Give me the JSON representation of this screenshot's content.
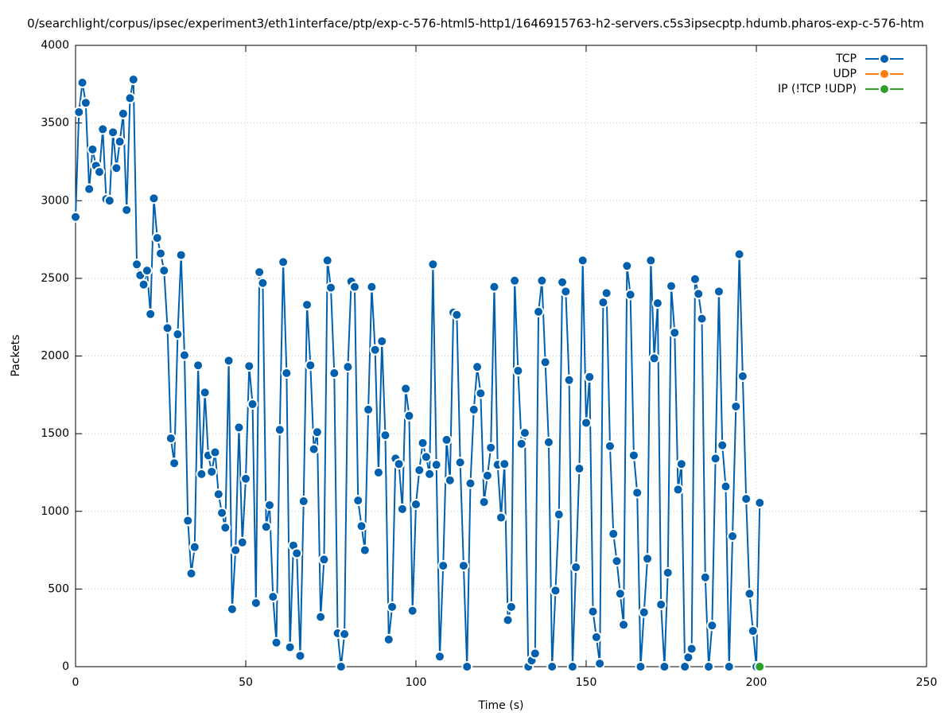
{
  "chart_data": {
    "type": "line",
    "title": "0/searchlight/corpus/ipsec/experiment3/eth1interface/ptp/exp-c-576-html5-http1/1646915763-h2-servers.c5s3ipsecptp.hdumb.pharos-exp-c-576-htm",
    "x_label": "Time (s)",
    "y_label": "Packets",
    "xlim": [
      0,
      250
    ],
    "xticks": [
      0,
      50,
      100,
      150,
      200,
      250
    ],
    "ylim": [
      0,
      4000
    ],
    "yticks": [
      0,
      500,
      1000,
      1500,
      2000,
      2500,
      3000,
      3500,
      4000
    ],
    "grid": true,
    "legend": "top-right",
    "series": [
      {
        "name": "TCP",
        "color": "#0060ad",
        "x": [
          0,
          1,
          2,
          3,
          4,
          5,
          6,
          7,
          8,
          9,
          10,
          11,
          12,
          13,
          14,
          15,
          16,
          17,
          18,
          19,
          20,
          21,
          22,
          23,
          24,
          25,
          26,
          27,
          28,
          29,
          30,
          31,
          32,
          33,
          34,
          35,
          36,
          37,
          38,
          39,
          40,
          41,
          42,
          43,
          44,
          45,
          46,
          47,
          48,
          49,
          50,
          51,
          52,
          53,
          54,
          55,
          56,
          57,
          58,
          59,
          60,
          61,
          62,
          63,
          64,
          65,
          66,
          67,
          68,
          69,
          70,
          71,
          72,
          73,
          74,
          75,
          76,
          77,
          78,
          79,
          80,
          81,
          82,
          83,
          84,
          85,
          86,
          87,
          88,
          89,
          90,
          91,
          92,
          93,
          94,
          95,
          96,
          97,
          98,
          99,
          100,
          101,
          102,
          103,
          104,
          105,
          106,
          107,
          108,
          109,
          110,
          111,
          112,
          113,
          114,
          115,
          116,
          117,
          118,
          119,
          120,
          121,
          122,
          123,
          124,
          125,
          126,
          127,
          128,
          129,
          130,
          131,
          132,
          133,
          134,
          135,
          136,
          137,
          138,
          139,
          140,
          141,
          142,
          143,
          144,
          145,
          146,
          147,
          148,
          149,
          150,
          151,
          152,
          153,
          154,
          155,
          156,
          157,
          158,
          159,
          160,
          161,
          162,
          163,
          164,
          165,
          166,
          167,
          168,
          169,
          170,
          171,
          172,
          173,
          174,
          175,
          176,
          177,
          178,
          179,
          180,
          181,
          182,
          183,
          184,
          185,
          186,
          187,
          188,
          189,
          190,
          191,
          192,
          193,
          194,
          195,
          196,
          197,
          198,
          199,
          200,
          201
        ],
        "values": [
          2895,
          3570,
          3760,
          3630,
          3075,
          3330,
          3225,
          3185,
          3460,
          3010,
          3000,
          3440,
          3210,
          3380,
          3560,
          2940,
          3660,
          3780,
          2590,
          2520,
          2460,
          2550,
          2270,
          3015,
          2760,
          2660,
          2550,
          2180,
          1470,
          1310,
          2140,
          2650,
          2005,
          940,
          600,
          770,
          1940,
          1240,
          1765,
          1360,
          1255,
          1380,
          1110,
          990,
          895,
          1970,
          370,
          750,
          1540,
          800,
          1210,
          1935,
          1690,
          410,
          2540,
          2470,
          900,
          1040,
          450,
          155,
          1525,
          2605,
          1890,
          125,
          780,
          730,
          70,
          1065,
          2330,
          1940,
          1400,
          1510,
          320,
          690,
          2615,
          2440,
          1890,
          215,
          0,
          210,
          1930,
          2480,
          2445,
          1070,
          905,
          750,
          1655,
          2445,
          2040,
          1250,
          2095,
          1490,
          175,
          385,
          1340,
          1305,
          1015,
          1790,
          1615,
          360,
          1045,
          1265,
          1440,
          1350,
          1240,
          2590,
          1300,
          65,
          650,
          1460,
          1200,
          2280,
          2265,
          1315,
          650,
          0,
          1180,
          1655,
          1930,
          1760,
          1060,
          1230,
          1410,
          2445,
          1300,
          960,
          1305,
          300,
          385,
          2485,
          1905,
          1435,
          1505,
          0,
          40,
          85,
          2285,
          2485,
          1960,
          1445,
          0,
          490,
          980,
          2475,
          2415,
          1845,
          0,
          640,
          1275,
          2615,
          1570,
          1865,
          355,
          190,
          20,
          2345,
          2405,
          1420,
          855,
          680,
          470,
          270,
          2580,
          2395,
          1360,
          1120,
          0,
          350,
          695,
          2615,
          1985,
          2340,
          400,
          0,
          605,
          2450,
          2150,
          1140,
          1305,
          0,
          60,
          115,
          2495,
          2400,
          2240,
          575,
          0,
          265,
          1340,
          2415,
          1425,
          1160,
          0,
          840,
          1675,
          2655,
          1870,
          1080,
          470,
          230,
          0,
          1055
        ]
      },
      {
        "name": "UDP",
        "color": "#ff7f0e",
        "x": [],
        "values": []
      },
      {
        "name": "IP (!TCP  !UDP)",
        "color": "#2ca02c",
        "x": [
          201
        ],
        "values": [
          0
        ]
      }
    ]
  }
}
